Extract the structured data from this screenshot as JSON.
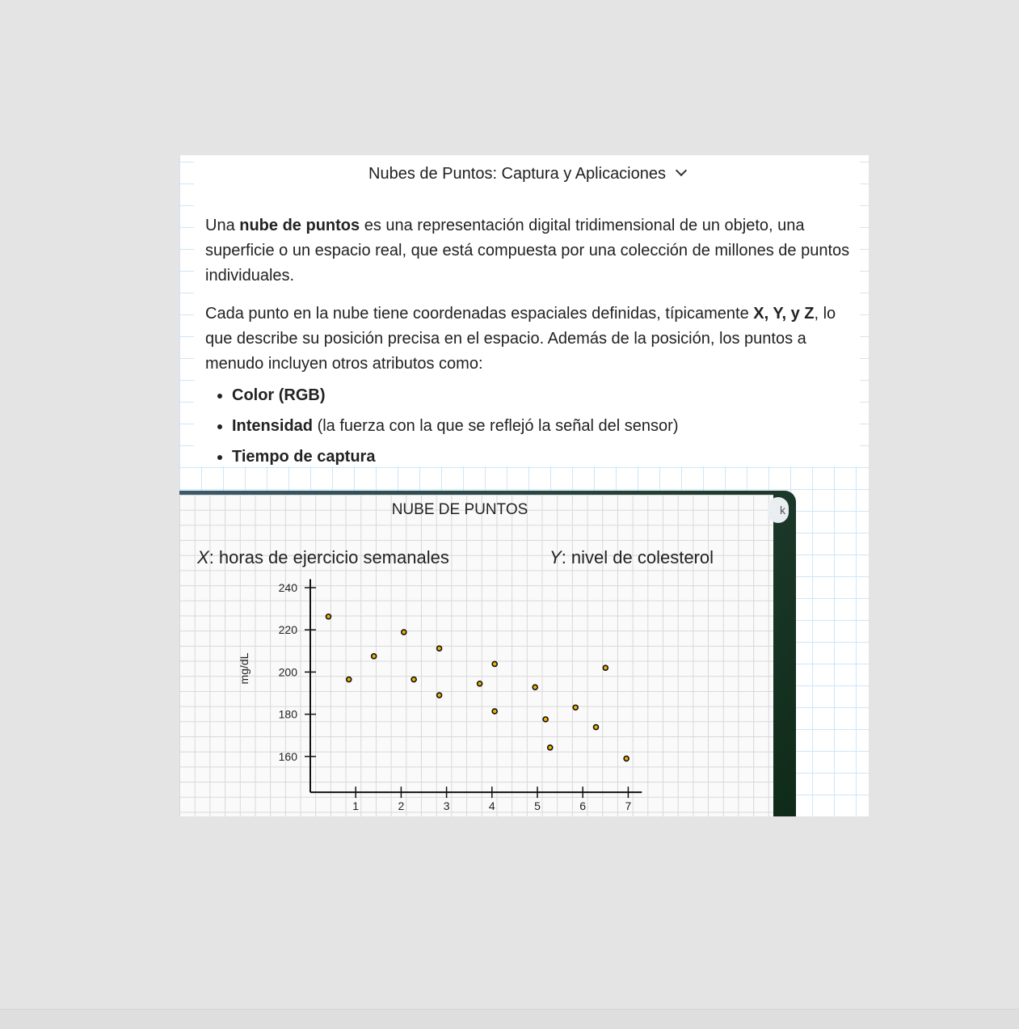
{
  "header": {
    "title": "Nubes de Puntos: Captura y Aplicaciones"
  },
  "content": {
    "p1": {
      "a": "Una ",
      "b": "nube de puntos",
      "c": " es una representación digital tridimensional de un objeto, una superficie o un espacio real, que está compuesta por una colección de millones de puntos individuales."
    },
    "p2": {
      "a": "Cada punto en la nube tiene coordenadas espaciales definidas, típicamente ",
      "b": "X, Y, y Z",
      "c": ", lo que describe su posición precisa en el espacio. Además de la posición, los puntos a menudo incluyen otros atributos como:"
    },
    "bullets": [
      {
        "bold": "Color (RGB)",
        "rest": ""
      },
      {
        "bold": "Intensidad",
        "rest": " (la fuerza con la que se reflejó la señal del sensor)"
      },
      {
        "bold": "Tiempo de captura",
        "rest": ""
      }
    ]
  },
  "overlay_button_text": "k",
  "chart_data": {
    "type": "scatter",
    "title": "NUBE DE PUNTOS",
    "subtitle_x": {
      "var": "X",
      "text": "horas de ejercicio semanales"
    },
    "subtitle_y": {
      "var": "Y",
      "text": "nivel de colesterol"
    },
    "xlabel": "",
    "ylabel": "mg/dL",
    "xlim": [
      0,
      7.3
    ],
    "ylim": [
      143,
      244
    ],
    "xticks": [
      1,
      2,
      3,
      4,
      5,
      6,
      7
    ],
    "yticks": [
      160,
      180,
      200,
      220,
      240
    ],
    "grid": true,
    "marker_color": "#f0b400",
    "points": [
      [
        0.4,
        226.3
      ],
      [
        0.85,
        196.5
      ],
      [
        1.4,
        207.5
      ],
      [
        2.06,
        218.9
      ],
      [
        2.28,
        196.5
      ],
      [
        2.84,
        211.2
      ],
      [
        2.84,
        189
      ],
      [
        3.73,
        194.5
      ],
      [
        4.06,
        203.8
      ],
      [
        4.06,
        181.4
      ],
      [
        4.95,
        192.8
      ],
      [
        5.18,
        177.6
      ],
      [
        5.28,
        164.2
      ],
      [
        5.84,
        183.2
      ],
      [
        6.29,
        173.9
      ],
      [
        6.5,
        202
      ],
      [
        6.96,
        159
      ]
    ]
  }
}
